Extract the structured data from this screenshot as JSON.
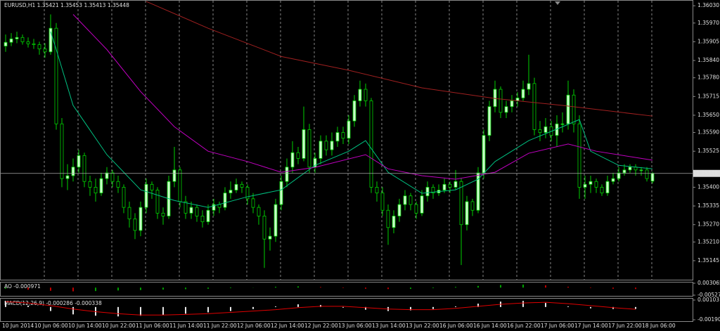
{
  "chart_data": [
    {
      "type": "candlestick",
      "title": "EURUSD,H1  1.35421 1.35453 1.35413 1.35448",
      "ylim": [
        1.35079,
        1.3605
      ],
      "yticks": [
        {
          "value": 1.3603,
          "label": "1.36030"
        },
        {
          "value": 1.3597,
          "label": "1.35970"
        },
        1.35905,
        {
          "value": 1.3584,
          "label": "1.35840"
        },
        {
          "value": 1.3578,
          "label": "1.35780"
        },
        1.35715,
        {
          "value": 1.3565,
          "label": "1.35650"
        },
        {
          "value": 1.3559,
          "label": "1.35590"
        },
        1.35525,
        {
          "value": 1.354,
          "label": "1.35400"
        },
        1.35335,
        {
          "value": 1.3527,
          "label": "1.35270"
        },
        {
          "value": 1.3521,
          "label": "1.35210"
        },
        1.35145
      ],
      "last_price": 1.35448,
      "grid": true,
      "time_labels": [
        "10 Jun 2014",
        "10 Jun 06:00",
        "10 Jun 14:00",
        "10 Jun 22:00",
        "11 Jun 06:00",
        "11 Jun 14:00",
        "11 Jun 22:00",
        "12 Jun 06:00",
        "12 Jun 14:00",
        "12 Jun 22:00",
        "13 Jun 06:00",
        "13 Jun 14:00",
        "13 Jun 22:00",
        "16 Jun 06:00",
        "16 Jun 14:00",
        "16 Jun 22:00",
        "17 Jun 06:00",
        "17 Jun 14:00",
        "17 Jun 22:00",
        "18 Jun 06:00"
      ],
      "series": [
        {
          "name": "EURUSD,H1",
          "color": "#00d000",
          "up_color": "#c8ffc8",
          "down_color": "#000000",
          "ohlc": [
            [
              1.3589,
              1.3593,
              1.3587,
              1.35903
            ],
            [
              1.35903,
              1.35935,
              1.3589,
              1.35915
            ],
            [
              1.35915,
              1.3594,
              1.359,
              1.3592
            ],
            [
              1.3592,
              1.3593,
              1.35895,
              1.35905
            ],
            [
              1.35905,
              1.3592,
              1.35885,
              1.35898
            ],
            [
              1.35898,
              1.35915,
              1.3588,
              1.35895
            ],
            [
              1.35895,
              1.35905,
              1.3586,
              1.3588
            ],
            [
              1.3588,
              1.359,
              1.3585,
              1.3587
            ],
            [
              1.3587,
              1.36,
              1.3586,
              1.35952
            ],
            [
              1.35952,
              1.3597,
              1.356,
              1.3562
            ],
            [
              1.3562,
              1.3564,
              1.354,
              1.3543
            ],
            [
              1.3543,
              1.3548,
              1.3539,
              1.3544
            ],
            [
              1.3544,
              1.355,
              1.3542,
              1.3547
            ],
            [
              1.3547,
              1.3553,
              1.3545,
              1.3551
            ],
            [
              1.3551,
              1.3552,
              1.354,
              1.3542
            ],
            [
              1.3542,
              1.3544,
              1.3537,
              1.354
            ],
            [
              1.354,
              1.3543,
              1.3535,
              1.3538
            ],
            [
              1.3538,
              1.3545,
              1.3537,
              1.3543
            ],
            [
              1.3543,
              1.3547,
              1.3541,
              1.3545
            ],
            [
              1.3545,
              1.3546,
              1.354,
              1.3542
            ],
            [
              1.3542,
              1.3544,
              1.3538,
              1.354
            ],
            [
              1.354,
              1.3541,
              1.3531,
              1.3533
            ],
            [
              1.3533,
              1.3535,
              1.3526,
              1.3529
            ],
            [
              1.3529,
              1.3531,
              1.3522,
              1.3525
            ],
            [
              1.3525,
              1.3535,
              1.3523,
              1.3533
            ],
            [
              1.3533,
              1.3543,
              1.3531,
              1.3541
            ],
            [
              1.3541,
              1.3542,
              1.3536,
              1.3539
            ],
            [
              1.3539,
              1.354,
              1.3529,
              1.3531
            ],
            [
              1.3531,
              1.3533,
              1.3527,
              1.353
            ],
            [
              1.353,
              1.3544,
              1.3529,
              1.3542
            ],
            [
              1.3542,
              1.3554,
              1.354,
              1.3546
            ],
            [
              1.3546,
              1.3547,
              1.3533,
              1.3535
            ],
            [
              1.3535,
              1.3537,
              1.3529,
              1.3531
            ],
            [
              1.3531,
              1.3535,
              1.3529,
              1.3533
            ],
            [
              1.3533,
              1.3534,
              1.3528,
              1.353
            ],
            [
              1.353,
              1.3532,
              1.3526,
              1.3528
            ],
            [
              1.3528,
              1.3534,
              1.3527,
              1.3532
            ],
            [
              1.3532,
              1.3536,
              1.353,
              1.3534
            ],
            [
              1.3534,
              1.3535,
              1.3531,
              1.3533
            ],
            [
              1.3533,
              1.354,
              1.3532,
              1.3538
            ],
            [
              1.3538,
              1.3542,
              1.3536,
              1.3539
            ],
            [
              1.3539,
              1.3543,
              1.3538,
              1.3541
            ],
            [
              1.3541,
              1.3542,
              1.3538,
              1.354
            ],
            [
              1.354,
              1.3541,
              1.3534,
              1.3536
            ],
            [
              1.3536,
              1.3538,
              1.3531,
              1.3533
            ],
            [
              1.3533,
              1.3534,
              1.3527,
              1.353
            ],
            [
              1.353,
              1.3532,
              1.3512,
              1.3522
            ],
            [
              1.3522,
              1.3526,
              1.3518,
              1.3523
            ],
            [
              1.3523,
              1.3536,
              1.3521,
              1.3534
            ],
            [
              1.3534,
              1.3544,
              1.3532,
              1.3542
            ],
            [
              1.3542,
              1.355,
              1.354,
              1.3547
            ],
            [
              1.3547,
              1.3556,
              1.3545,
              1.3552
            ],
            [
              1.3552,
              1.3554,
              1.3548,
              1.355
            ],
            [
              1.355,
              1.3568,
              1.3549,
              1.356
            ],
            [
              1.356,
              1.3562,
              1.3545,
              1.3547
            ],
            [
              1.3547,
              1.3552,
              1.3545,
              1.355
            ],
            [
              1.355,
              1.3558,
              1.3548,
              1.3556
            ],
            [
              1.3556,
              1.3558,
              1.3551,
              1.3553
            ],
            [
              1.3553,
              1.3559,
              1.3551,
              1.3556
            ],
            [
              1.3556,
              1.3561,
              1.3554,
              1.3559
            ],
            [
              1.3559,
              1.3561,
              1.3555,
              1.3557
            ],
            [
              1.3557,
              1.3565,
              1.3555,
              1.3563
            ],
            [
              1.3563,
              1.3572,
              1.3561,
              1.357
            ],
            [
              1.357,
              1.3577,
              1.3568,
              1.3574
            ],
            [
              1.3574,
              1.3576,
              1.3568,
              1.357
            ],
            [
              1.357,
              1.3571,
              1.3538,
              1.354
            ],
            [
              1.354,
              1.3542,
              1.3535,
              1.3538
            ],
            [
              1.3538,
              1.354,
              1.353,
              1.3532
            ],
            [
              1.3532,
              1.3534,
              1.352,
              1.3526
            ],
            [
              1.3526,
              1.3532,
              1.3524,
              1.353
            ],
            [
              1.353,
              1.3536,
              1.3528,
              1.3534
            ],
            [
              1.3534,
              1.3539,
              1.3532,
              1.3537
            ],
            [
              1.3537,
              1.3538,
              1.3532,
              1.3534
            ],
            [
              1.3534,
              1.3535,
              1.3529,
              1.3531
            ],
            [
              1.3531,
              1.3539,
              1.353,
              1.3537
            ],
            [
              1.3537,
              1.3542,
              1.3535,
              1.354
            ],
            [
              1.354,
              1.3541,
              1.3536,
              1.3538
            ],
            [
              1.3538,
              1.3541,
              1.3537,
              1.3539
            ],
            [
              1.3539,
              1.3543,
              1.3538,
              1.3541
            ],
            [
              1.3541,
              1.3542,
              1.3538,
              1.354
            ],
            [
              1.354,
              1.3546,
              1.3539,
              1.3542
            ],
            [
              1.3542,
              1.3543,
              1.3513,
              1.3527
            ],
            [
              1.3527,
              1.3537,
              1.3525,
              1.3535
            ],
            [
              1.3535,
              1.3536,
              1.353,
              1.3532
            ],
            [
              1.3532,
              1.3547,
              1.3531,
              1.3545
            ],
            [
              1.3545,
              1.356,
              1.3543,
              1.3558
            ],
            [
              1.3558,
              1.357,
              1.3556,
              1.3568
            ],
            [
              1.3568,
              1.3577,
              1.3566,
              1.3574
            ],
            [
              1.3574,
              1.3575,
              1.3564,
              1.3566
            ],
            [
              1.3566,
              1.357,
              1.3564,
              1.3568
            ],
            [
              1.3568,
              1.3572,
              1.3566,
              1.357
            ],
            [
              1.357,
              1.3573,
              1.3568,
              1.3571
            ],
            [
              1.3571,
              1.3577,
              1.357,
              1.3574
            ],
            [
              1.3574,
              1.3586,
              1.3572,
              1.3576
            ],
            [
              1.3576,
              1.3578,
              1.3558,
              1.356
            ],
            [
              1.356,
              1.3563,
              1.3556,
              1.3559
            ],
            [
              1.3559,
              1.3564,
              1.3557,
              1.3561
            ],
            [
              1.3561,
              1.3563,
              1.3556,
              1.3558
            ],
            [
              1.3558,
              1.3565,
              1.3554,
              1.3562
            ],
            [
              1.3562,
              1.3566,
              1.3559,
              1.3562
            ],
            [
              1.3562,
              1.3577,
              1.356,
              1.3572
            ],
            [
              1.3572,
              1.3574,
              1.3559,
              1.3562
            ],
            [
              1.3562,
              1.3565,
              1.3536,
              1.354
            ],
            [
              1.354,
              1.3544,
              1.3536,
              1.3541
            ],
            [
              1.3541,
              1.3544,
              1.3538,
              1.3542
            ],
            [
              1.3542,
              1.3543,
              1.3538,
              1.354
            ],
            [
              1.354,
              1.3541,
              1.3537,
              1.3538
            ],
            [
              1.3538,
              1.3544,
              1.3537,
              1.3542
            ],
            [
              1.3542,
              1.3545,
              1.3541,
              1.3543
            ],
            [
              1.3543,
              1.3547,
              1.3542,
              1.3545
            ],
            [
              1.3545,
              1.3548,
              1.3544,
              1.3546
            ],
            [
              1.3546,
              1.3548,
              1.3545,
              1.3547
            ],
            [
              1.3547,
              1.3548,
              1.3544,
              1.3546
            ],
            [
              1.3546,
              1.3547,
              1.3544,
              1.3546
            ],
            [
              1.3546,
              1.3547,
              1.3542,
              1.3543
            ],
            [
              1.35421,
              1.35453,
              1.35413,
              1.35448
            ]
          ]
        },
        {
          "type": "line",
          "color": "#00c080",
          "x": [
            8,
            9,
            12,
            18,
            24,
            30,
            36,
            43,
            49,
            55,
            61,
            64,
            68,
            74,
            80,
            84,
            87,
            93,
            99,
            102,
            104,
            109,
            115
          ],
          "values": [
            1.3594,
            1.35878,
            1.35684,
            1.35513,
            1.35391,
            1.35354,
            1.3533,
            1.35367,
            1.35391,
            1.35476,
            1.35525,
            1.35562,
            1.35452,
            1.35379,
            1.35391,
            1.35428,
            1.35489,
            1.35562,
            1.3561,
            1.35635,
            1.35525,
            1.35476,
            1.35464
          ]
        },
        {
          "type": "line",
          "color": "#c000c0",
          "x": [
            12,
            18,
            24,
            30,
            36,
            43,
            49,
            55,
            64,
            68,
            74,
            80,
            87,
            93,
            100,
            105,
            115
          ],
          "values": [
            1.36,
            1.35878,
            1.35732,
            1.3561,
            1.35525,
            1.35489,
            1.35452,
            1.35469,
            1.35513,
            1.35464,
            1.3544,
            1.35428,
            1.35452,
            1.35518,
            1.3555,
            1.35525,
            1.35494
          ]
        },
        {
          "type": "line",
          "color": "#a02020",
          "x": [
            25,
            36,
            49,
            61,
            74,
            87,
            99,
            115
          ],
          "values": [
            1.36045,
            1.35952,
            1.35854,
            1.35806,
            1.35745,
            1.35708,
            1.35684,
            1.35647
          ]
        }
      ]
    },
    {
      "type": "histogram",
      "title": "AO -0.000971",
      "ylim": [
        -0.005272,
        0.003065
      ],
      "yticks": [
        0.003065,
        -0.005272
      ],
      "up_color": "#00a000",
      "down_color": "#c00000",
      "values": [
        -0.0008,
        -0.0015,
        -0.0022,
        -0.0026,
        -0.0024,
        -0.002,
        -0.0017,
        -0.0014,
        -0.0011,
        -0.0008,
        -0.0004,
        0.0001,
        0.0006,
        0.0009,
        0.0004,
        -0.0003,
        -0.0008,
        -0.001,
        -0.0009,
        -0.0004,
        0.0005,
        0.0012,
        0.0018,
        0.0021,
        0.0016,
        0.0006,
        -0.0003,
        -0.0008,
        -0.000971
      ]
    },
    {
      "type": "macd",
      "title": "MACD(12,26,9) -0.000286 -0.000338",
      "ylim": [
        -0.0019,
        0.00103
      ],
      "yticks": [
        0.00103,
        {
          "value": -0.0019,
          "label": "-0.00190"
        }
      ],
      "series": [
        {
          "name": "MACD",
          "color": "#e8e8e8",
          "values": [
            0.0009,
            0.0002,
            -0.0006,
            -0.0011,
            -0.0013,
            -0.0014,
            -0.0013,
            -0.0012,
            -0.001,
            -0.0008,
            -0.0006,
            -0.0003,
            0.0001,
            0.0004,
            0.0003,
            -0.0001,
            -0.0004,
            -0.0006,
            -0.0005,
            -0.0003,
            0.0001,
            0.0005,
            0.0008,
            0.0009,
            0.0006,
            0.0001,
            -0.0002,
            -0.0003,
            -0.000286
          ]
        },
        {
          "name": "Signal",
          "color": "#e00000",
          "values": [
            0.0008,
            0.0006,
            0.0002,
            -0.0003,
            -0.0007,
            -0.001,
            -0.0012,
            -0.0012,
            -0.0011,
            -0.001,
            -0.0008,
            -0.0006,
            -0.0004,
            -0.0001,
            0.0001,
            0.0001,
            -0.0001,
            -0.0003,
            -0.0004,
            -0.0004,
            -0.0002,
            0.0001,
            0.0004,
            0.0006,
            0.0007,
            0.0005,
            0.0002,
            -0.0001,
            -0.000338
          ]
        }
      ]
    }
  ]
}
